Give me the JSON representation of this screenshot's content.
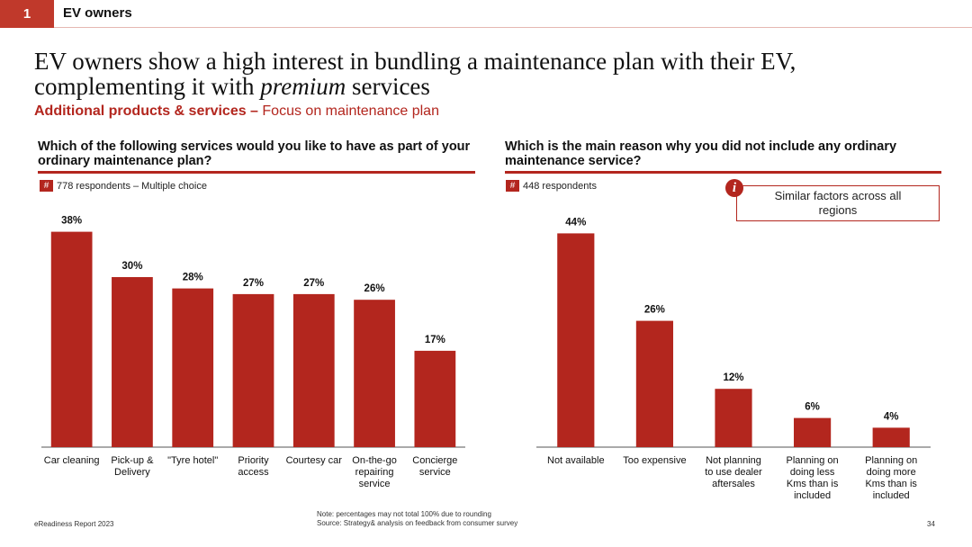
{
  "header": {
    "section_number": "1",
    "section_label": "EV owners"
  },
  "title": {
    "line1": "EV owners show a high interest in bundling a maintenance plan with their EV,",
    "line2_prefix": "complementing it with ",
    "line2_emphasis": "premium",
    "line2_suffix": " services"
  },
  "subtitle": {
    "bold": "Additional products & services –",
    "rest": " Focus on maintenance plan"
  },
  "left_panel": {
    "question": "Which of the following services would you like to have as part of your ordinary maintenance plan?",
    "hash": "#",
    "respondents": "778 respondents – Multiple choice"
  },
  "right_panel": {
    "question": "Which is the main reason why you did not include any ordinary maintenance service?",
    "hash": "#",
    "respondents": "448 respondents",
    "callout": "Similar factors across all regions",
    "info_icon": "i"
  },
  "footer": {
    "report": "eReadiness Report 2023",
    "note": "Note: percentages may not total 100% due to rounding",
    "source": "Source: Strategy& analysis on feedback from consumer survey",
    "page": "34"
  },
  "colors": {
    "accent": "#b3261e",
    "bar": "#b3261e"
  },
  "chart_data": [
    {
      "type": "bar",
      "title": "Which of the following services would you like to have as part of your ordinary maintenance plan?",
      "categories": [
        "Car cleaning",
        "Pick-up & Delivery",
        "\"Tyre hotel\"",
        "Priority access",
        "Courtesy car",
        "On-the-go repairing service",
        "Concierge service"
      ],
      "category_lines": [
        [
          "Car cleaning"
        ],
        [
          "Pick-up &",
          "Delivery"
        ],
        [
          "\"Tyre hotel\""
        ],
        [
          "Priority",
          "access"
        ],
        [
          "Courtesy car"
        ],
        [
          "On-the-go",
          "repairing",
          "service"
        ],
        [
          "Concierge",
          "service"
        ]
      ],
      "values": [
        38,
        30,
        28,
        27,
        27,
        26,
        17
      ],
      "labels": [
        "38%",
        "30%",
        "28%",
        "27%",
        "27%",
        "26%",
        "17%"
      ],
      "unit": "%",
      "ylim": [
        0,
        40
      ]
    },
    {
      "type": "bar",
      "title": "Which is the main reason why you did not include any ordinary maintenance service?",
      "categories": [
        "Not available",
        "Too expensive",
        "Not planning to use dealer aftersales",
        "Planning on doing less Kms than is included",
        "Planning on doing more Kms than is included"
      ],
      "category_lines": [
        [
          "Not available"
        ],
        [
          "Too expensive"
        ],
        [
          "Not planning",
          "to use dealer",
          "aftersales"
        ],
        [
          "Planning on",
          "doing less",
          "Kms than is",
          "included"
        ],
        [
          "Planning on",
          "doing more",
          "Kms than is",
          "included"
        ]
      ],
      "values": [
        44,
        26,
        12,
        6,
        4
      ],
      "labels": [
        "44%",
        "26%",
        "12%",
        "6%",
        "4%"
      ],
      "unit": "%",
      "ylim": [
        0,
        46
      ]
    }
  ]
}
